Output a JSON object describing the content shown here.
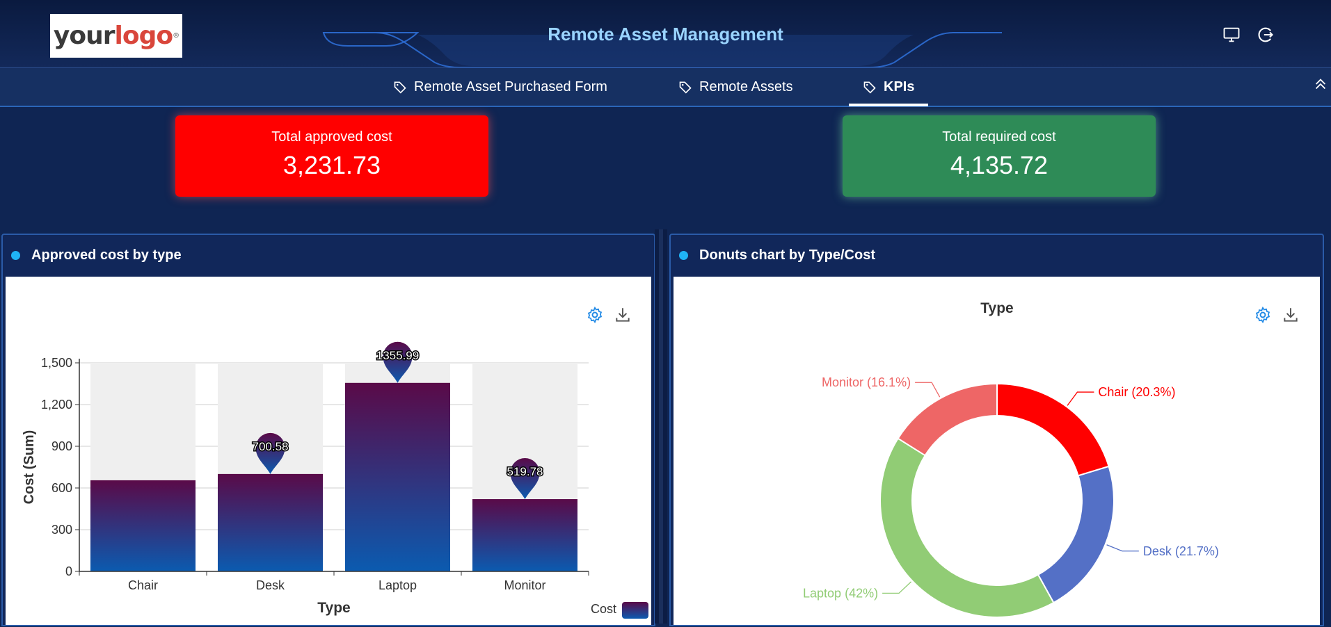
{
  "header": {
    "logo_text_1": "your",
    "logo_text_2": "logo",
    "logo_mark": "®",
    "title": "Remote Asset Management",
    "icons": [
      "monitor-icon",
      "logout-icon"
    ]
  },
  "tabs": [
    {
      "label": "Remote Asset Purchased Form",
      "icon": "tag-icon",
      "active": false
    },
    {
      "label": "Remote Assets",
      "icon": "tag-icon",
      "active": false
    },
    {
      "label": "KPIs",
      "icon": "tag-icon",
      "active": true
    }
  ],
  "kpis": [
    {
      "label": "Total approved cost",
      "value": "3,231.73",
      "color": "#ff0000"
    },
    {
      "label": "Total required cost",
      "value": "4,135.72",
      "color": "#2e8b57"
    }
  ],
  "panels": {
    "bar": {
      "title": "Approved cost by type"
    },
    "donut": {
      "title": "Donuts chart by Type/Cost"
    }
  },
  "chart_data": [
    {
      "type": "bar",
      "categories": [
        "Chair",
        "Desk",
        "Laptop",
        "Monitor"
      ],
      "series": [
        {
          "name": "Cost",
          "values": [
            655.38,
            700.58,
            1355.99,
            519.78
          ]
        }
      ],
      "markers": [
        "",
        "700.58",
        "1355.99",
        "519.78"
      ],
      "xlabel": "Type",
      "ylabel": "Cost (Sum)",
      "ylim": [
        0,
        1500
      ],
      "yticks": [
        "0",
        "300",
        "600",
        "900",
        "1,200",
        "1,500"
      ],
      "grid": true,
      "legend": "bottom-right",
      "colors": [
        "#0b5bb0",
        "#5a0a48"
      ]
    },
    {
      "type": "pie",
      "title": "Type",
      "categories": [
        "Chair",
        "Desk",
        "Laptop",
        "Monitor"
      ],
      "values": [
        20.3,
        21.7,
        42,
        16.1
      ],
      "labels": [
        "Chair (20.3%)",
        "Desk (21.7%)",
        "Laptop (42%)",
        "Monitor (16.1%)"
      ],
      "colors": [
        "#ff0000",
        "#5470c6",
        "#91cc75",
        "#ee6666"
      ]
    }
  ]
}
